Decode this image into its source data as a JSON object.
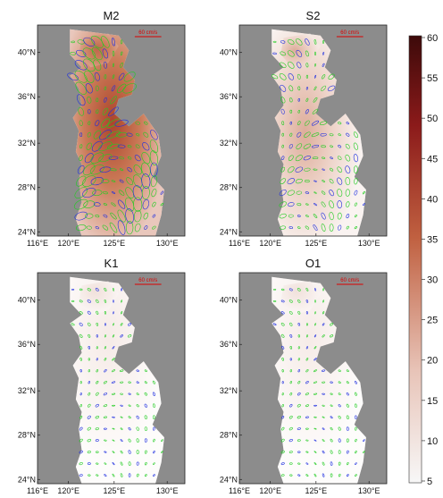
{
  "panels": [
    {
      "title": "M2",
      "scale_label": "60 cm/s",
      "intensity": 1.0
    },
    {
      "title": "S2",
      "scale_label": "60 cm/s",
      "intensity": 0.45
    },
    {
      "title": "K1",
      "scale_label": "60 cm/s",
      "intensity": 0.12
    },
    {
      "title": "O1",
      "scale_label": "60 cm/s",
      "intensity": 0.1
    }
  ],
  "lat_ticks": [
    "40°N",
    "36°N",
    "32°N",
    "28°N",
    "24°N"
  ],
  "lon_ticks": [
    "116°E",
    "120°E",
    "125°E",
    "130°E"
  ],
  "colorbar": {
    "ticks": [
      "60",
      "55",
      "50",
      "45",
      "40",
      "35",
      "30",
      "25",
      "20",
      "15",
      "10",
      "5"
    ],
    "colors": [
      "#f7f7f7",
      "#e8c4b8",
      "#c06040",
      "#8b1a1a",
      "#3d0a0a"
    ]
  },
  "colors": {
    "land": "#8c8c8c",
    "sea": "#ffffff",
    "ellipse_ccw": "#1f2fe0",
    "ellipse_cw": "#22cc22",
    "scale_bar": "#dd0000"
  }
}
